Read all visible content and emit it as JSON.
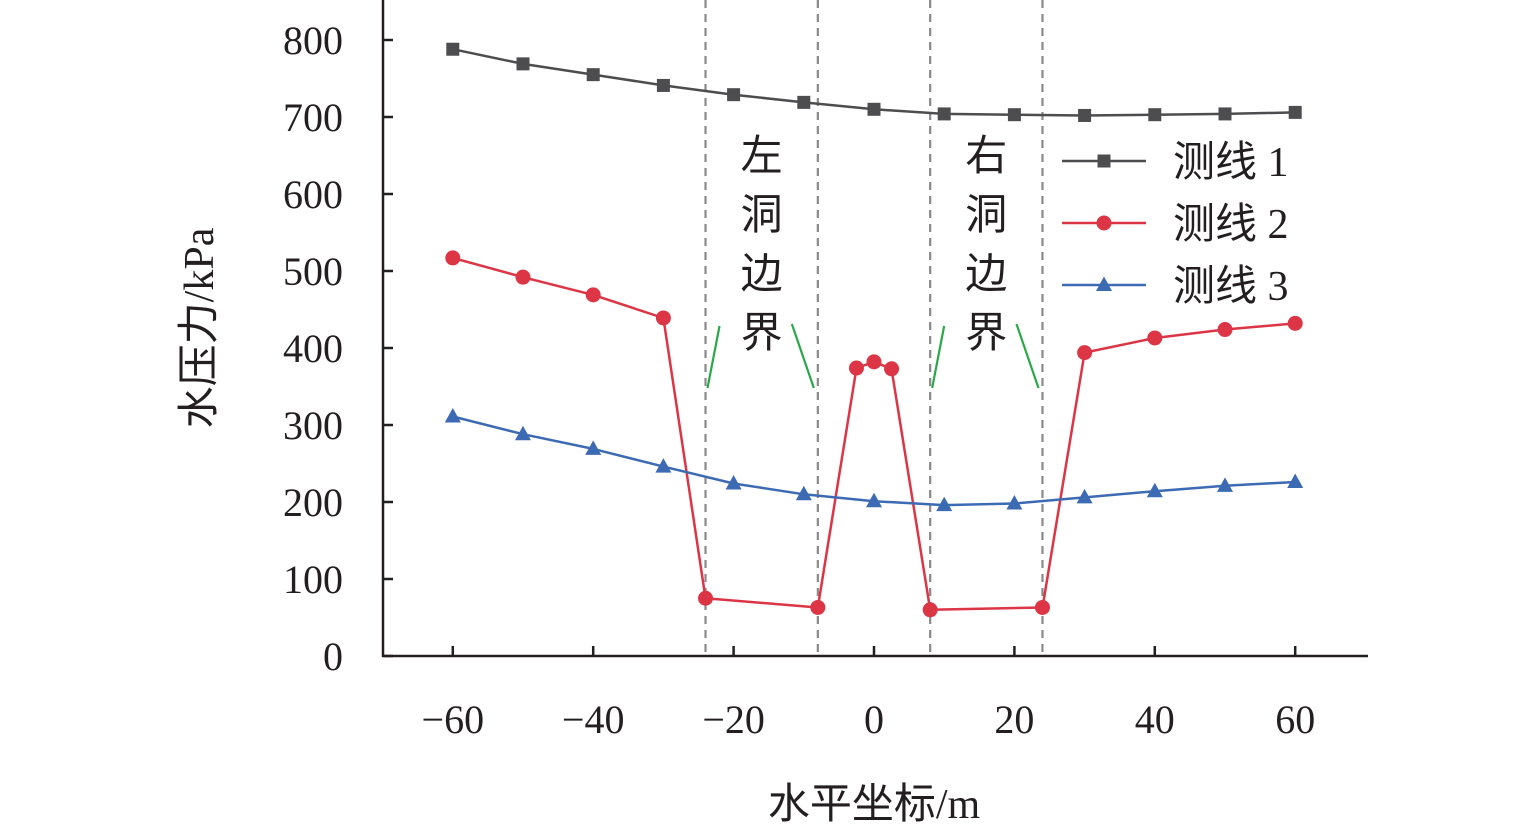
{
  "chart_data": {
    "type": "line",
    "title": "",
    "xlabel": "水平坐标/m",
    "ylabel": "水压力/kPa",
    "xlim": [
      -70,
      70
    ],
    "ylim": [
      0,
      850
    ],
    "xticks": [
      -60,
      -40,
      -20,
      0,
      20,
      40,
      60
    ],
    "xtick_labels": [
      "−60",
      "−40",
      "−20",
      "0",
      "20",
      "40",
      "60"
    ],
    "yticks": [
      0,
      100,
      200,
      300,
      400,
      500,
      600,
      700,
      800
    ],
    "ytick_labels": [
      "0",
      "100",
      "200",
      "300",
      "400",
      "500",
      "600",
      "700",
      "800"
    ],
    "grid": false,
    "legend_position": "top-right",
    "series": [
      {
        "name": "测线 1",
        "color": "#4d4d4f",
        "marker": "square",
        "x": [
          -60,
          -50,
          -40,
          -30,
          -20,
          -10,
          0,
          10,
          20,
          30,
          40,
          50,
          60
        ],
        "y": [
          788,
          769,
          755,
          741,
          729,
          719,
          710,
          704,
          703,
          702,
          703,
          704,
          706
        ]
      },
      {
        "name": "测线 2",
        "color": "#dc3545",
        "marker": "circle",
        "x": [
          -60,
          -50,
          -40,
          -30,
          -24,
          -8,
          -2.5,
          0,
          2.5,
          8,
          24,
          30,
          40,
          50,
          60
        ],
        "y": [
          517,
          492,
          469,
          439,
          75,
          63,
          374,
          382,
          373,
          60,
          63,
          394,
          413,
          424,
          432
        ]
      },
      {
        "name": "测线 3",
        "color": "#3d6bb3",
        "marker": "triangle",
        "x": [
          -60,
          -50,
          -40,
          -30,
          -20,
          -10,
          0,
          10,
          20,
          30,
          40,
          50,
          60
        ],
        "y": [
          311,
          288,
          269,
          246,
          224,
          210,
          201,
          196,
          198,
          206,
          214,
          221,
          226
        ]
      }
    ],
    "boundaries": [
      {
        "x": -24,
        "label": "左洞边界"
      },
      {
        "x": -8,
        "label": "左洞边界"
      },
      {
        "x": 8,
        "label": "右洞边界"
      },
      {
        "x": 24,
        "label": "右洞边界"
      }
    ],
    "annotations": [
      {
        "text": [
          "左",
          "洞",
          "边",
          "界"
        ],
        "between": [
          -24,
          -8
        ],
        "pointer_color": "#2aa84a"
      },
      {
        "text": [
          "右",
          "洞",
          "边",
          "界"
        ],
        "between": [
          8,
          24
        ],
        "pointer_color": "#2aa84a"
      }
    ]
  }
}
